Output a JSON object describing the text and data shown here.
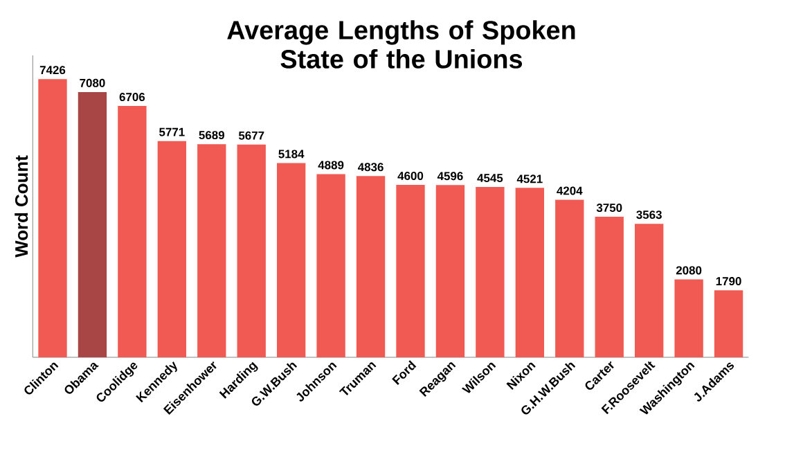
{
  "chart_data": {
    "type": "bar",
    "title": "Average Lengths of Spoken\nState of the Unions",
    "ylabel": "Word Count",
    "categories": [
      "Clinton",
      "Obama",
      "Coolidge",
      "Kennedy",
      "Eisenhower",
      "Harding",
      "G.W.Bush",
      "Johnson",
      "Truman",
      "Ford",
      "Reagan",
      "Wilson",
      "Nixon",
      "G.H.W.Bush",
      "Carter",
      "F.Roosevelt",
      "Washington",
      "J.Adams"
    ],
    "values": [
      7426,
      7080,
      6706,
      5771,
      5689,
      5677,
      5184,
      4889,
      4836,
      4600,
      4596,
      4545,
      4521,
      4204,
      3750,
      3563,
      2080,
      1790
    ],
    "colors": [
      "#f05a52",
      "#a84646",
      "#f05a52",
      "#f05a52",
      "#f05a52",
      "#f05a52",
      "#f05a52",
      "#f05a52",
      "#f05a52",
      "#f05a52",
      "#f05a52",
      "#f05a52",
      "#f05a52",
      "#f05a52",
      "#f05a52",
      "#f05a52",
      "#f05a52",
      "#f05a52"
    ],
    "data_labels": true,
    "grid": false
  }
}
